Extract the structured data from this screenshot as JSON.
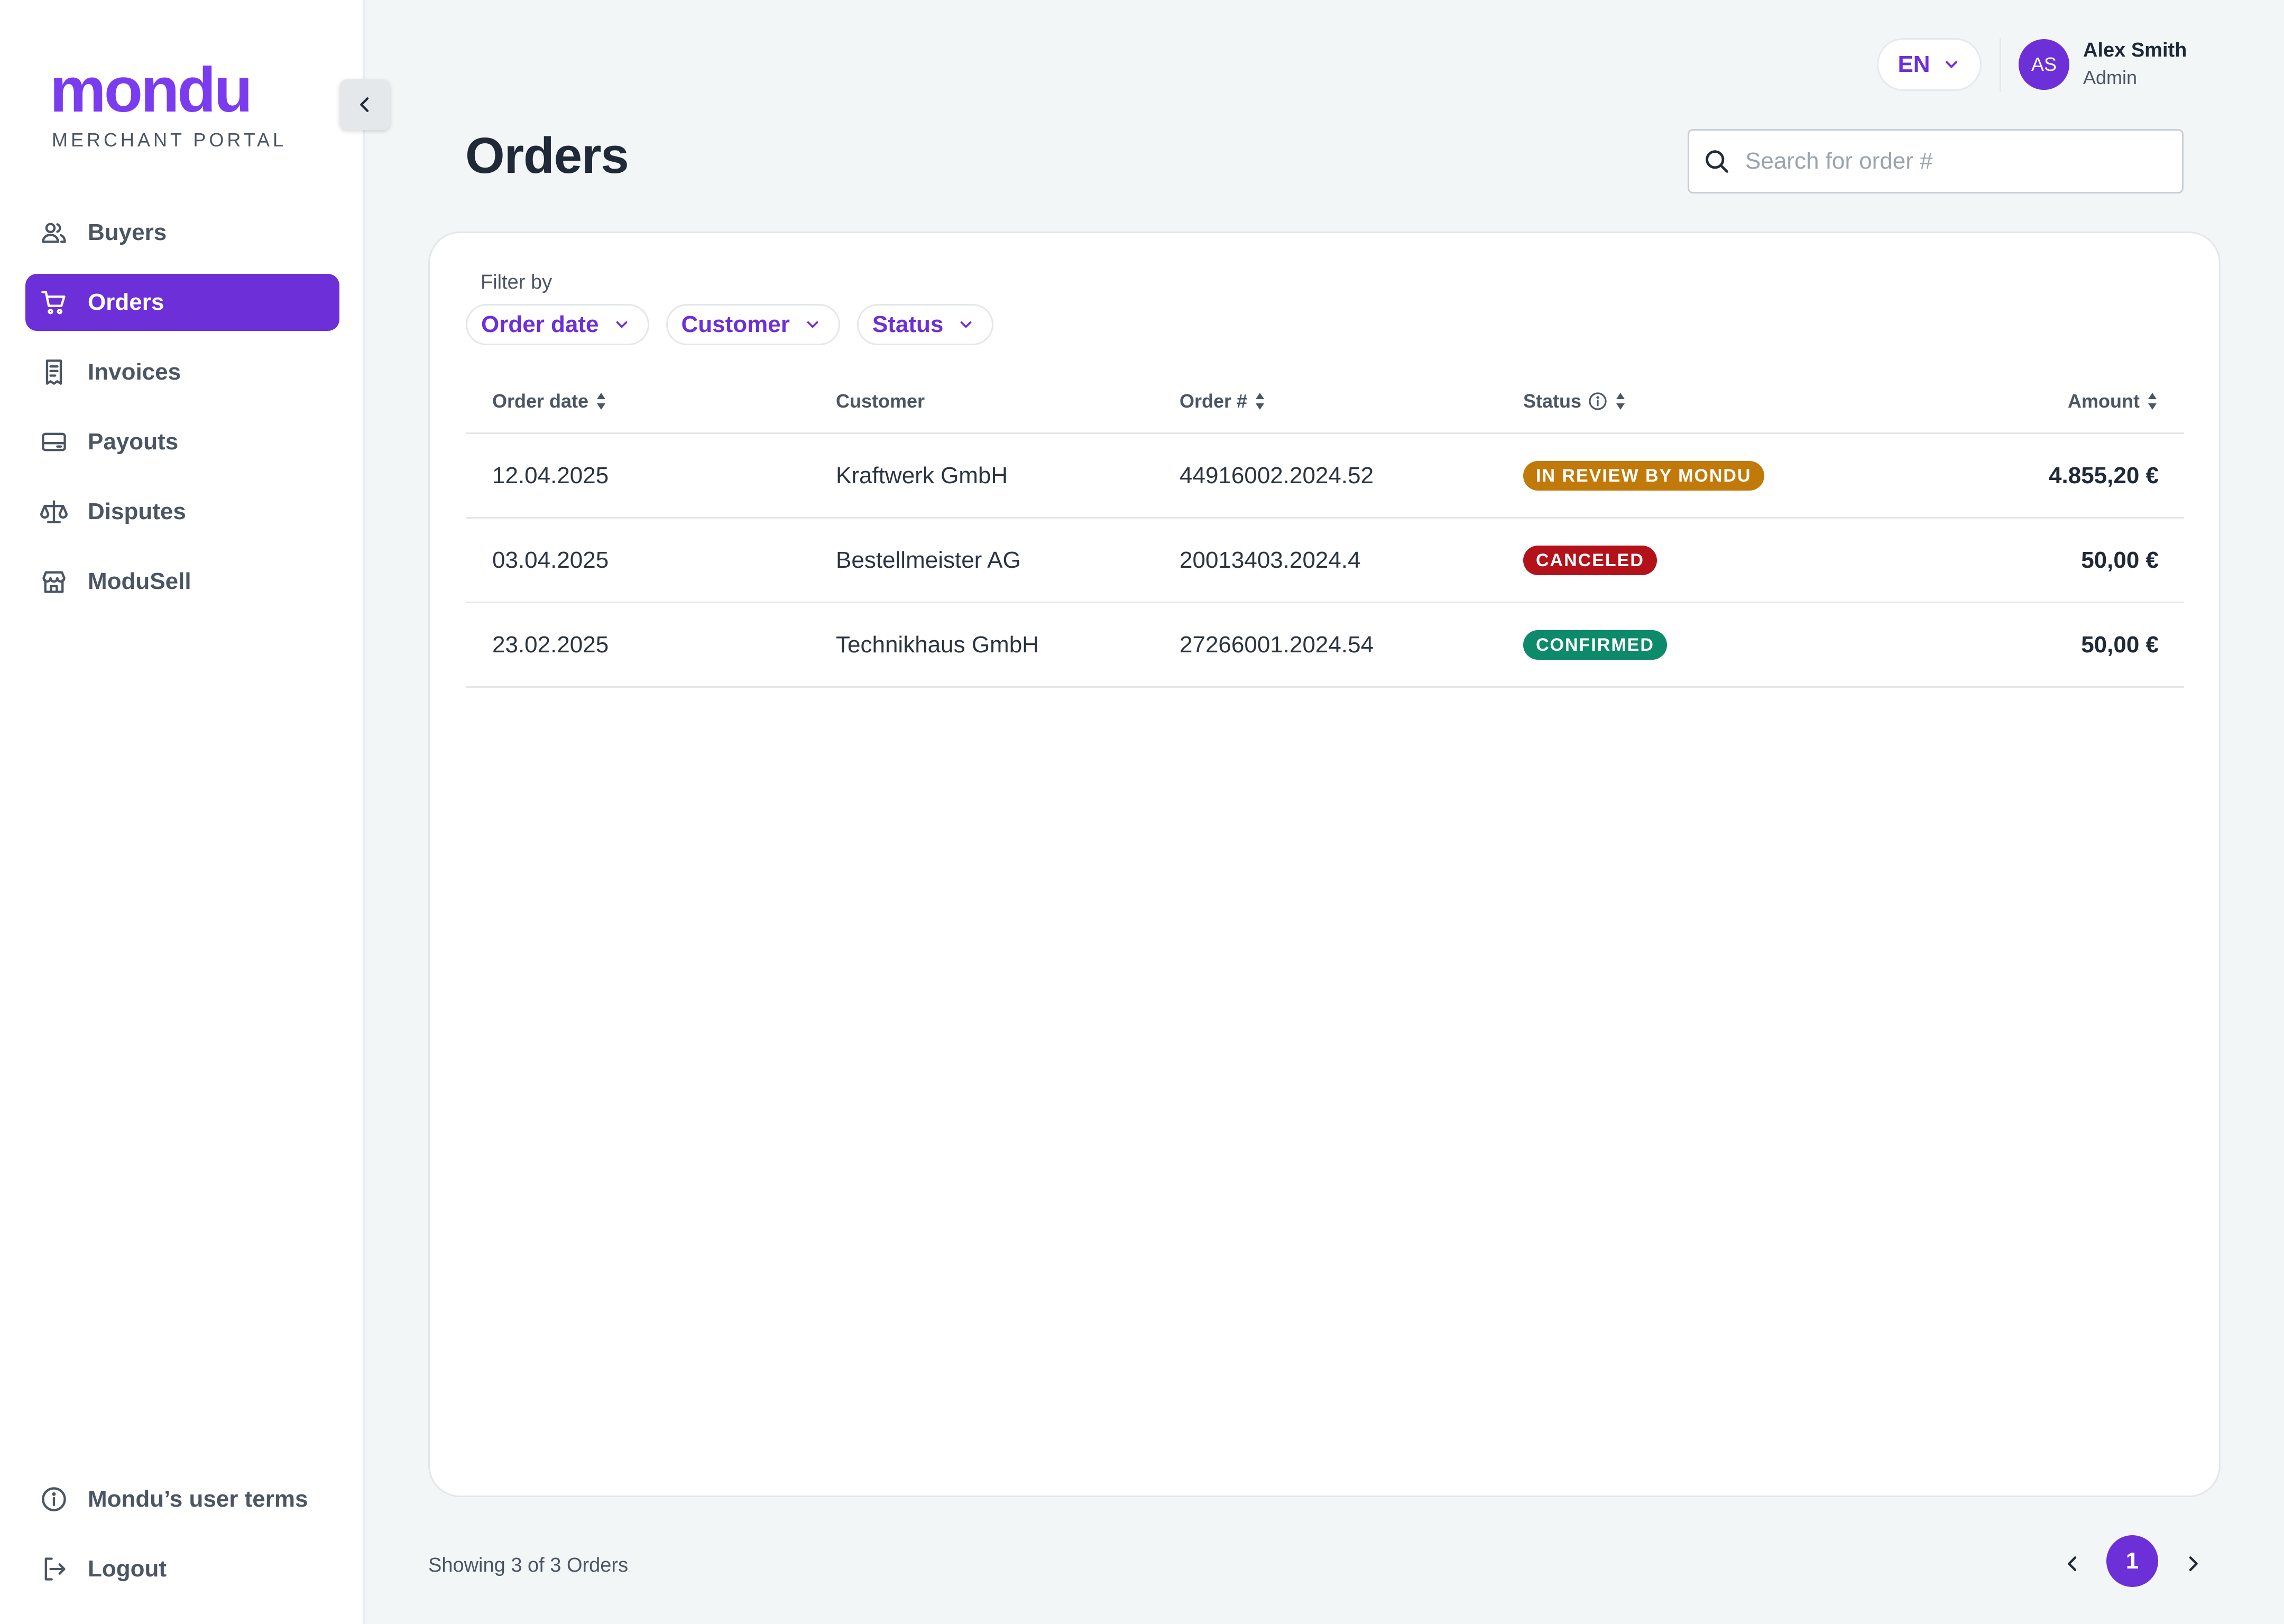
{
  "brand": {
    "logo_text": "mondu",
    "subtitle": "MERCHANT PORTAL",
    "accent_color": "#6d2fd8"
  },
  "sidebar": {
    "items": [
      {
        "label": "Buyers",
        "icon": "users-icon",
        "active": false
      },
      {
        "label": "Orders",
        "icon": "cart-icon",
        "active": true
      },
      {
        "label": "Invoices",
        "icon": "invoice-icon",
        "active": false
      },
      {
        "label": "Payouts",
        "icon": "wallet-icon",
        "active": false
      },
      {
        "label": "Disputes",
        "icon": "scale-icon",
        "active": false
      },
      {
        "label": "ModuSell",
        "icon": "store-icon",
        "active": false
      }
    ],
    "bottom_items": [
      {
        "label": "Mondu’s user terms",
        "icon": "info-icon"
      },
      {
        "label": "Logout",
        "icon": "logout-icon"
      }
    ]
  },
  "header": {
    "language": "EN",
    "user": {
      "initials": "AS",
      "name": "Alex Smith",
      "role": "Admin"
    }
  },
  "page": {
    "title": "Orders",
    "search_placeholder": "Search for order #",
    "search_value": ""
  },
  "filters": {
    "label": "Filter by",
    "chips": [
      "Order date",
      "Customer",
      "Status"
    ]
  },
  "table": {
    "columns": [
      "Order date",
      "Customer",
      "Order #",
      "Status",
      "Amount"
    ],
    "rows": [
      {
        "date": "12.04.2025",
        "customer": "Kraftwerk GmbH",
        "order": "44916002.2024.52",
        "status": "IN REVIEW BY MONDU",
        "status_color": "#c17a0a",
        "amount": "4.855,20 €"
      },
      {
        "date": "03.04.2025",
        "customer": "Bestellmeister AG",
        "order": "20013403.2024.4",
        "status": "CANCELED",
        "status_color": "#b4121b",
        "amount": "50,00 €"
      },
      {
        "date": "23.02.2025",
        "customer": "Technikhaus GmbH",
        "order": "27266001.2024.54",
        "status": "CONFIRMED",
        "status_color": "#0d8a6a",
        "amount": "50,00 €"
      }
    ]
  },
  "footer": {
    "showing": "Showing 3 of 3 Orders",
    "current_page": "1"
  }
}
